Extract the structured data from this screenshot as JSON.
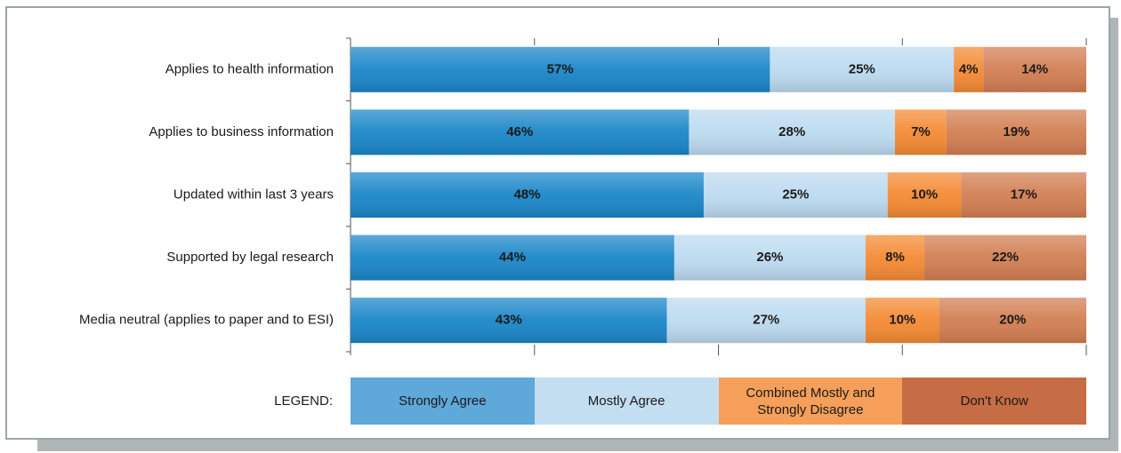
{
  "chart_data": {
    "type": "stacked_bar_horizontal",
    "categories": [
      "Applies to health information",
      "Applies to business information",
      "Updated within last 3 years",
      "Supported by legal research",
      "Media neutral (applies to paper and to ESI)"
    ],
    "series": [
      {
        "name": "Strongly Agree",
        "color": "#1a86c8",
        "values": [
          57,
          46,
          48,
          44,
          43
        ],
        "value_labels": [
          "57%",
          "46%",
          "48%",
          "44%",
          "43%"
        ]
      },
      {
        "name": "Mostly Agree",
        "color": "#bcdaf0",
        "values": [
          25,
          28,
          25,
          26,
          27
        ],
        "value_labels": [
          "25%",
          "28%",
          "25%",
          "26%",
          "27%"
        ]
      },
      {
        "name": "Combined Mostly and Strongly Disagree",
        "color": "#f48a33",
        "values": [
          4,
          7,
          10,
          8,
          10
        ],
        "value_labels": [
          "4%",
          "7%",
          "10%",
          "8%",
          "10%"
        ]
      },
      {
        "name": "Don't Know",
        "color": "#d27e52",
        "values": [
          14,
          19,
          17,
          22,
          20
        ],
        "value_labels": [
          "14%",
          "19%",
          "17%",
          "22%",
          "20%"
        ]
      }
    ],
    "legend_colors": [
      "#5ea8da",
      "#c3def1",
      "#f59f5a",
      "#c66d45"
    ],
    "legend_title": "LEGEND:",
    "xlim": [
      0,
      100
    ],
    "xticks": [
      0,
      25,
      50,
      75,
      100
    ]
  }
}
